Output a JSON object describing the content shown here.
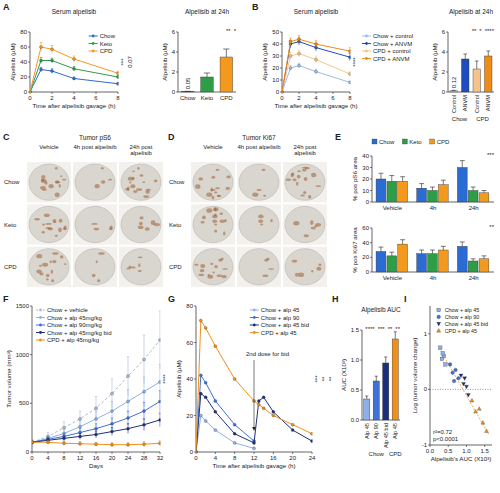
{
  "chart_data": [
    {
      "panel": "A",
      "type": "line",
      "title": "Serum alpelisib",
      "x_label": "Time after alpelisib gavage (h)",
      "y_label": "Alpelisib (µM)",
      "x": [
        0,
        1,
        2,
        4,
        8
      ],
      "xlim": [
        0,
        8
      ],
      "xticks": [
        0,
        2,
        4,
        6,
        8
      ],
      "ylim": [
        0,
        80
      ],
      "yticks": [
        0,
        20,
        40,
        60,
        80
      ],
      "legend": "upper right",
      "marker": "circle",
      "series": [
        {
          "name": "Chow",
          "color": "#2a6bd4",
          "values": [
            0,
            30,
            28,
            18,
            11
          ],
          "errors": [
            0,
            3,
            3,
            2,
            2
          ]
        },
        {
          "name": "Keto",
          "color": "#2e9e46",
          "values": [
            0,
            42,
            42,
            31,
            20
          ],
          "errors": [
            0,
            4,
            3,
            3,
            2
          ]
        },
        {
          "name": "CPD",
          "color": "#f39a1e",
          "values": [
            0,
            60,
            57,
            44,
            25
          ],
          "errors": [
            0,
            6,
            5,
            4,
            3
          ]
        }
      ],
      "annotations": [
        "***",
        "0.07"
      ]
    },
    {
      "type": "bar",
      "title": "Alpelisib at 24h",
      "y_label": "Alpelisib (µM)",
      "categories": [
        "Chow",
        "Keto",
        "CPD"
      ],
      "values": [
        0.05,
        1.5,
        3.5
      ],
      "errors": [
        0.02,
        0.4,
        0.8
      ],
      "value_labels": [
        "0.05",
        null,
        null
      ],
      "colors": [
        "#2a6bd4",
        "#2e9e46",
        "#f39a1e"
      ],
      "ylim": [
        0,
        6
      ],
      "yticks": [
        0,
        2,
        4,
        6
      ],
      "annotations": [
        "**",
        "*"
      ]
    },
    {
      "panel": "B",
      "type": "line",
      "title": "Serum alpelisib",
      "x_label": "Time after alpelisib gavage (h)",
      "y_label": "Alpelisib (µM)",
      "x": [
        0,
        1,
        2,
        4,
        8
      ],
      "xlim": [
        0,
        8
      ],
      "xticks": [
        0,
        2,
        4,
        6,
        8
      ],
      "ylim": [
        0,
        50
      ],
      "yticks": [
        0,
        10,
        20,
        30,
        40,
        50
      ],
      "legend": "right",
      "marker": "circle",
      "series": [
        {
          "name": "Chow + control",
          "color": "#9ebbe9",
          "values": [
            0,
            20,
            22,
            17,
            8
          ],
          "errors": [
            0,
            2,
            2,
            2,
            1
          ]
        },
        {
          "name": "Chow + ANVM",
          "color": "#1f4cbf",
          "values": [
            0,
            40,
            42,
            37,
            29
          ],
          "errors": [
            0,
            3,
            3,
            3,
            3
          ]
        },
        {
          "name": "CPD + control",
          "color": "#f6c48a",
          "values": [
            0,
            30,
            32,
            27,
            15
          ],
          "errors": [
            0,
            3,
            3,
            3,
            2
          ]
        },
        {
          "name": "CPD + ANVM",
          "color": "#ef8c16",
          "values": [
            0,
            42,
            44,
            40,
            34
          ],
          "errors": [
            0,
            3,
            3,
            3,
            3
          ]
        }
      ],
      "annotations": [
        "****"
      ]
    },
    {
      "type": "bar",
      "title": "Alpelisib at 24h",
      "y_label": "Alpelisib (µM)",
      "categories": [
        "Control",
        "ANVM",
        "Control",
        "ANVM"
      ],
      "group_labels": [
        "Chow",
        "Chow",
        "CPD",
        "CPD"
      ],
      "values": [
        0.12,
        3.3,
        2.3,
        3.6
      ],
      "errors": [
        0.05,
        0.5,
        0.8,
        0.5
      ],
      "value_labels": [
        "0.12",
        null,
        null,
        null
      ],
      "colors": [
        "#9ebbe9",
        "#1f4cbf",
        "#f6c48a",
        "#ef8c16"
      ],
      "ylim": [
        0,
        6
      ],
      "yticks": [
        0,
        2,
        4,
        6
      ],
      "annotations": [
        "**",
        "*",
        "****"
      ]
    },
    {
      "panel": "E",
      "type": "bar",
      "y_label": "% pos pS6 area",
      "categories": [
        "Vehicle",
        "4h",
        "24h"
      ],
      "legend": "top",
      "ylim": [
        0,
        40
      ],
      "yticks": [
        0,
        10,
        20,
        30,
        40
      ],
      "series": [
        {
          "name": "Chow",
          "color": "#2a6bd4",
          "values": [
            20,
            12,
            30
          ],
          "errors": [
            5,
            4,
            6
          ]
        },
        {
          "name": "Keto",
          "color": "#2e9e46",
          "values": [
            18,
            10,
            10
          ],
          "errors": [
            5,
            3,
            3
          ]
        },
        {
          "name": "CPD",
          "color": "#f39a1e",
          "values": [
            18,
            15,
            8
          ],
          "errors": [
            4,
            4,
            2
          ]
        }
      ],
      "annotations": [
        "***"
      ]
    },
    {
      "type": "bar",
      "y_label": "% pos Ki67 area",
      "categories": [
        "Vehicle",
        "4h",
        "24h"
      ],
      "ylim": [
        0,
        60
      ],
      "yticks": [
        0,
        20,
        40,
        60
      ],
      "series": [
        {
          "name": "Chow",
          "color": "#2a6bd4",
          "values": [
            28,
            25,
            35
          ],
          "errors": [
            6,
            5,
            6
          ]
        },
        {
          "name": "Keto",
          "color": "#2e9e46",
          "values": [
            22,
            25,
            15
          ],
          "errors": [
            5,
            5,
            3
          ]
        },
        {
          "name": "CPD",
          "color": "#f39a1e",
          "values": [
            38,
            30,
            18
          ],
          "errors": [
            6,
            5,
            4
          ]
        }
      ],
      "annotations": [
        "**"
      ]
    },
    {
      "panel": "F",
      "type": "line",
      "x_label": "Days",
      "y_label": "Tumor volume (mm³)",
      "x": [
        0,
        4,
        8,
        12,
        16,
        20,
        24,
        28,
        32
      ],
      "xlim": [
        0,
        32
      ],
      "xticks": [
        0,
        4,
        8,
        12,
        16,
        20,
        24,
        28,
        32
      ],
      "ylim": [
        0,
        1500
      ],
      "yticks": [
        0,
        500,
        1000,
        1500
      ],
      "legend": "upper left",
      "marker": "circle",
      "series": [
        {
          "name": "Chow + vehicle",
          "color": "#aebbd6",
          "line_style": "dashed",
          "values": [
            100,
            160,
            250,
            340,
            450,
            600,
            780,
            950,
            1150
          ],
          "errors": [
            20,
            40,
            60,
            80,
            120,
            150,
            200,
            250,
            300
          ]
        },
        {
          "name": "Chow + alp 45mg/kg",
          "color": "#8db1ea",
          "values": [
            100,
            140,
            190,
            260,
            340,
            420,
            520,
            620,
            720
          ],
          "errors": [
            20,
            30,
            40,
            60,
            80,
            100,
            120,
            150,
            180
          ]
        },
        {
          "name": "Chow + alp 90mg/kg",
          "color": "#3f72d8",
          "values": [
            100,
            130,
            160,
            200,
            240,
            290,
            350,
            420,
            520
          ],
          "errors": [
            20,
            25,
            30,
            40,
            50,
            60,
            70,
            90,
            110
          ]
        },
        {
          "name": "Chow + alp 45mg/kg bid",
          "color": "#1b2f7c",
          "values": [
            100,
            120,
            140,
            160,
            180,
            210,
            240,
            280,
            330
          ],
          "errors": [
            20,
            20,
            25,
            30,
            35,
            40,
            50,
            60,
            70
          ]
        },
        {
          "name": "CPD + alp 45mg/kg",
          "color": "#f0901a",
          "values": [
            100,
            100,
            90,
            85,
            80,
            75,
            75,
            80,
            90
          ],
          "errors": [
            20,
            20,
            20,
            20,
            20,
            20,
            20,
            25,
            25
          ]
        }
      ],
      "annotations": [
        "****"
      ]
    },
    {
      "panel": "G",
      "type": "line",
      "x_label": "Time after alpelisib gavage (h)",
      "y_label": "Alpelisib (µM)",
      "x": [
        0,
        1,
        2,
        4,
        8,
        12,
        13,
        14,
        16,
        20,
        24
      ],
      "xlim": [
        0,
        24
      ],
      "xticks": [
        0,
        4,
        8,
        12,
        16,
        20,
        24
      ],
      "ylim": [
        0,
        80
      ],
      "yticks": [
        0,
        20,
        40,
        60,
        80
      ],
      "legend": "upper right",
      "marker": "circle",
      "series": [
        {
          "name": "Chow + alp 45",
          "color": "#8db1ea",
          "values": [
            0,
            20,
            17,
            12,
            5,
            2,
            null,
            null,
            null,
            null,
            null
          ]
        },
        {
          "name": "Chow + alp 90",
          "color": "#3f72d8",
          "values": [
            0,
            42,
            38,
            28,
            15,
            6,
            null,
            null,
            null,
            null,
            null
          ]
        },
        {
          "name": "Chow + alp 45 bid",
          "color": "#1b2f7c",
          "values": [
            0,
            32,
            30,
            22,
            10,
            5,
            28,
            30,
            22,
            12,
            6
          ]
        },
        {
          "name": "CPD + alp 45",
          "color": "#f0901a",
          "values": [
            0,
            72,
            68,
            58,
            40,
            28,
            26,
            24,
            20,
            15,
            10
          ]
        }
      ],
      "arrow_annotation": {
        "text": "2nd dose for bid",
        "x": 12
      },
      "annotations": [
        "***",
        "**",
        "**"
      ]
    },
    {
      "panel": "H",
      "type": "bar",
      "title": "Alpelisib AUC",
      "y_label": "AUC (X10³)",
      "categories": [
        "Alp 45",
        "Alp 90",
        "Alp 45 bid",
        "Alp 45"
      ],
      "group_labels": [
        "Chow",
        "Chow",
        "Chow",
        "CPD"
      ],
      "values": [
        0.35,
        0.65,
        0.95,
        1.35
      ],
      "errors": [
        0.05,
        0.08,
        0.1,
        0.12
      ],
      "colors": [
        "#8db1ea",
        "#3f72d8",
        "#1b2f7c",
        "#f0901a"
      ],
      "ylim": [
        0,
        1.5
      ],
      "yticks": [
        {
          "value": 0,
          "label": "0.0"
        },
        0.5,
        {
          "value": 1,
          "label": "1.0"
        },
        1.5
      ],
      "annotations": [
        "****",
        "***",
        "**",
        "**"
      ]
    },
    {
      "panel": "I",
      "type": "scatter",
      "x_label": "Alpelisib's AUC (X10³)",
      "y_label": "Log (tumor volume change)",
      "xlim": [
        0,
        1.7
      ],
      "xticks": [
        {
          "value": 0,
          "label": "0.0"
        },
        0.5,
        {
          "value": 1,
          "label": "1.0"
        },
        1.5
      ],
      "ylim": [
        -1,
        1.5
      ],
      "yticks": [
        -1,
        0,
        1
      ],
      "legend": "upper right",
      "reference_line": 0,
      "series": [
        {
          "name": "Chow + alp 45",
          "color": "#8db1ea",
          "marker": "square",
          "x": [
            0.28,
            0.33,
            0.38,
            0.42,
            0.35
          ],
          "values": [
            0.75,
            0.55,
            0.6,
            0.45,
            0.65
          ]
        },
        {
          "name": "Chow + alp 90",
          "color": "#3f72d8",
          "marker": "circle",
          "x": [
            0.55,
            0.62,
            0.7,
            0.78,
            0.66
          ],
          "values": [
            0.45,
            0.3,
            0.35,
            0.2,
            0.15
          ]
        },
        {
          "name": "Chow + alp 45 bid",
          "color": "#1b2f7c",
          "marker": "triangle-down",
          "x": [
            0.85,
            0.92,
            1.0,
            1.05,
            0.95
          ],
          "values": [
            0.25,
            0.1,
            0.05,
            -0.1,
            0.2
          ]
        },
        {
          "name": "CPD + alp 45",
          "color": "#f0901a",
          "marker": "triangle",
          "x": [
            1.15,
            1.25,
            1.35,
            1.45,
            1.55
          ],
          "values": [
            -0.2,
            -0.4,
            -0.35,
            -0.6,
            -0.75
          ]
        }
      ],
      "fit": {
        "x": [
          0.25,
          1.6
        ],
        "values": [
          0.75,
          -0.8
        ]
      },
      "annotations": [
        "r²=0.72",
        "p<0.0001"
      ]
    }
  ],
  "images": [
    {
      "panel": "C",
      "title": "Tumor pS6",
      "columns": [
        "Vehicle",
        "4h post alpelisib",
        "24h post alpelisib"
      ],
      "rows": [
        "Chow",
        "Keto",
        "CPD"
      ]
    },
    {
      "panel": "D",
      "title": "Tumor Ki67",
      "columns": [
        "Vehicle",
        "4h post alpelisib",
        "24h post alpelisib"
      ],
      "rows": [
        "Chow",
        "Keto",
        "CPD"
      ]
    }
  ]
}
